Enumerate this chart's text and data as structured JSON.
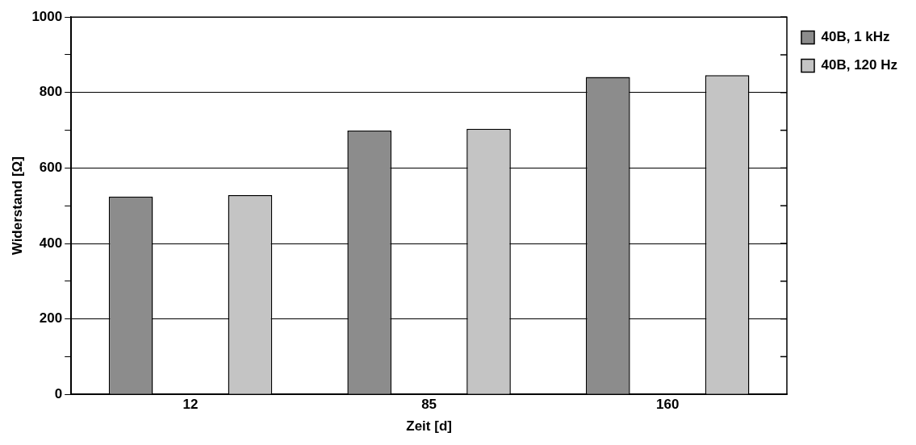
{
  "chart_data": {
    "type": "bar",
    "xlabel": "Zeit [d]",
    "ylabel": "Widerstand [Ω]",
    "categories": [
      "12",
      "85",
      "160"
    ],
    "series": [
      {
        "name": "40B, 1 kHz",
        "color": "#8c8c8c",
        "values": [
          524,
          699,
          841
        ]
      },
      {
        "name": "40B, 120 Hz",
        "color": "#c4c4c4",
        "values": [
          528,
          704,
          846
        ]
      }
    ],
    "ylim": [
      0,
      1000
    ],
    "yticks": [
      0,
      {
        "value": 100,
        "label": null
      },
      200,
      {
        "value": 300,
        "label": null
      },
      400,
      {
        "value": 500,
        "label": null
      },
      600,
      {
        "value": 700,
        "label": null
      },
      800,
      {
        "value": 900,
        "label": null
      },
      1000
    ],
    "grid": "y",
    "legend": "top right"
  }
}
